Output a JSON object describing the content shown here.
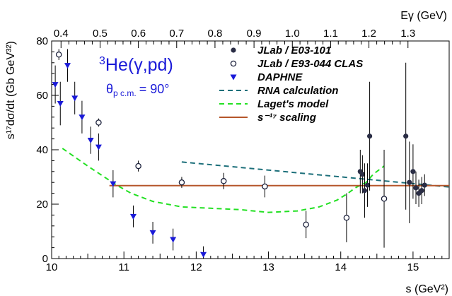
{
  "chart_data": {
    "type": "scatter",
    "xlabel": "s (GeV²)",
    "ylabel": "s¹⁷dσ/dt (Gb GeV³²)",
    "top_axis_label": "Eγ (GeV)",
    "xlim": [
      10,
      15.5
    ],
    "ylim": [
      0,
      80
    ],
    "x_ticks": [
      10,
      11,
      12,
      13,
      14,
      15
    ],
    "y_ticks": [
      0,
      20,
      40,
      60,
      80
    ],
    "top_ticks": [
      "0.4",
      "0.5",
      "0.6",
      "0.7",
      "0.8",
      "0.9",
      "1.0",
      "1.1",
      "1.2",
      "1.3"
    ],
    "top_tick_s": [
      10.13,
      10.67,
      11.2,
      11.73,
      12.26,
      12.8,
      13.33,
      13.86,
      14.39,
      14.93
    ],
    "annotation": {
      "reaction": "He(γ,pd)",
      "superscript": "3",
      "theta": "θ",
      "theta_sub": "p c.m.",
      "theta_val": "= 90°"
    },
    "legend_position": "top-right",
    "series": [
      {
        "name": "JLab / E03-101",
        "marker": "filled-circle",
        "color": "#2a2d45",
        "points": [
          {
            "x": 14.27,
            "y": 32,
            "err": 8
          },
          {
            "x": 14.3,
            "y": 31,
            "err": 7
          },
          {
            "x": 14.33,
            "y": 25,
            "err": 10
          },
          {
            "x": 14.37,
            "y": 27,
            "err": 8
          },
          {
            "x": 14.4,
            "y": 45,
            "err": 20
          },
          {
            "x": 14.9,
            "y": 45,
            "err": 27
          },
          {
            "x": 14.95,
            "y": 28,
            "err": 15
          },
          {
            "x": 15.0,
            "y": 32,
            "err": 10
          },
          {
            "x": 15.04,
            "y": 26,
            "err": 6
          },
          {
            "x": 15.08,
            "y": 24,
            "err": 5
          },
          {
            "x": 15.12,
            "y": 25,
            "err": 5
          },
          {
            "x": 15.16,
            "y": 27,
            "err": 4
          }
        ]
      },
      {
        "name": "JLab / E93-044 CLAS",
        "marker": "open-circle",
        "color": "#1a1f3a",
        "points": [
          {
            "x": 10.1,
            "y": 75,
            "err": 2
          },
          {
            "x": 10.65,
            "y": 50,
            "err": 1.5
          },
          {
            "x": 11.2,
            "y": 34,
            "err": 2
          },
          {
            "x": 11.8,
            "y": 28,
            "err": 2
          },
          {
            "x": 12.38,
            "y": 28.5,
            "err": 3
          },
          {
            "x": 12.95,
            "y": 26.5,
            "err": 4
          },
          {
            "x": 13.52,
            "y": 12.5,
            "err": 5
          },
          {
            "x": 14.08,
            "y": 15,
            "err": 9
          },
          {
            "x": 14.6,
            "y": 22,
            "err": 18
          }
        ]
      },
      {
        "name": "DAPHNE",
        "marker": "triangle-down",
        "color": "#1a1ad8",
        "points": [
          {
            "x": 10.05,
            "y": 64,
            "err": 7
          },
          {
            "x": 10.12,
            "y": 57,
            "err": 8
          },
          {
            "x": 10.22,
            "y": 71,
            "err": 6
          },
          {
            "x": 10.32,
            "y": 59,
            "err": 6
          },
          {
            "x": 10.42,
            "y": 52,
            "err": 6
          },
          {
            "x": 10.54,
            "y": 43.5,
            "err": 5
          },
          {
            "x": 10.65,
            "y": 41,
            "err": 5
          },
          {
            "x": 10.85,
            "y": 27.5,
            "err": 5
          },
          {
            "x": 11.13,
            "y": 15.5,
            "err": 4
          },
          {
            "x": 11.4,
            "y": 9.5,
            "err": 4
          },
          {
            "x": 11.68,
            "y": 7,
            "err": 4
          },
          {
            "x": 12.1,
            "y": 1.5,
            "err": 3
          }
        ]
      }
    ],
    "curves": [
      {
        "name": "RNA calculation",
        "style": "dashed",
        "color": "#1c6f7a",
        "points": [
          [
            11.8,
            35.5
          ],
          [
            15.5,
            26.3
          ]
        ]
      },
      {
        "name": "Laget's model",
        "style": "dashed",
        "color": "#22e022",
        "points": [
          [
            10.15,
            40.5
          ],
          [
            10.5,
            34
          ],
          [
            10.9,
            27
          ],
          [
            11.1,
            24
          ],
          [
            11.4,
            21
          ],
          [
            11.8,
            19
          ],
          [
            12.2,
            18.5
          ],
          [
            12.6,
            18
          ],
          [
            13.0,
            17
          ],
          [
            13.4,
            17.5
          ],
          [
            13.7,
            19
          ],
          [
            13.95,
            21.5
          ],
          [
            14.1,
            24
          ],
          [
            14.2,
            26
          ],
          [
            14.35,
            28
          ],
          [
            14.45,
            31
          ],
          [
            14.6,
            34
          ]
        ]
      },
      {
        "name": "s⁻¹⁷ scaling",
        "style": "solid",
        "color": "#b5562a",
        "points": [
          [
            10.8,
            26.8
          ],
          [
            15.5,
            26.8
          ]
        ]
      }
    ]
  }
}
